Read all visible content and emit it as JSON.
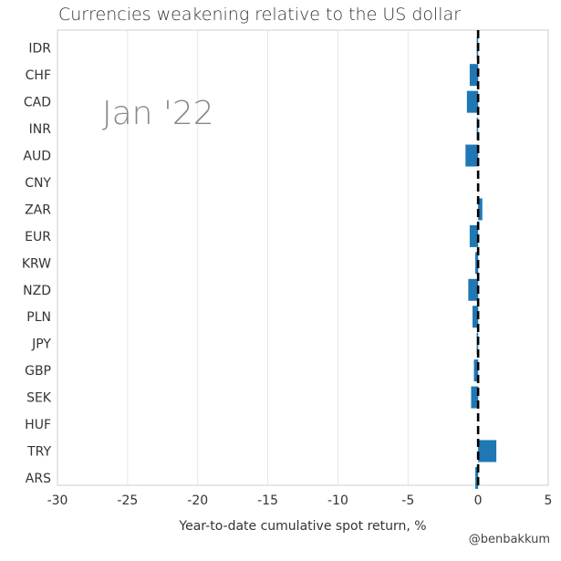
{
  "colors": {
    "bar": "#1f77b4",
    "zero_line": "#000000",
    "grid": "#e6e6e6",
    "axis_text": "#333333",
    "annotation": "#888888"
  },
  "credit": "@benbakkum",
  "chart_data": {
    "type": "bar",
    "orientation": "horizontal",
    "title": "Currencies weakening relative to the US dollar",
    "xlabel": "Year-to-date cumulative spot return, %",
    "ylabel": "",
    "annotation": "Jan '22",
    "xlim": [
      -30,
      5
    ],
    "xticks": [
      -30,
      -25,
      -20,
      -15,
      -10,
      -5,
      0,
      5
    ],
    "grid": "vertical",
    "reference_line": {
      "x": 0,
      "style": "dashed"
    },
    "categories": [
      "IDR",
      "CHF",
      "CAD",
      "INR",
      "AUD",
      "CNY",
      "ZAR",
      "EUR",
      "KRW",
      "NZD",
      "PLN",
      "JPY",
      "GBP",
      "SEK",
      "HUF",
      "TRY",
      "ARS"
    ],
    "values": [
      -0.1,
      -0.6,
      -0.8,
      -0.1,
      -0.9,
      0.0,
      0.3,
      -0.6,
      -0.2,
      -0.7,
      -0.4,
      -0.1,
      -0.3,
      -0.5,
      0.0,
      1.3,
      -0.2
    ]
  }
}
